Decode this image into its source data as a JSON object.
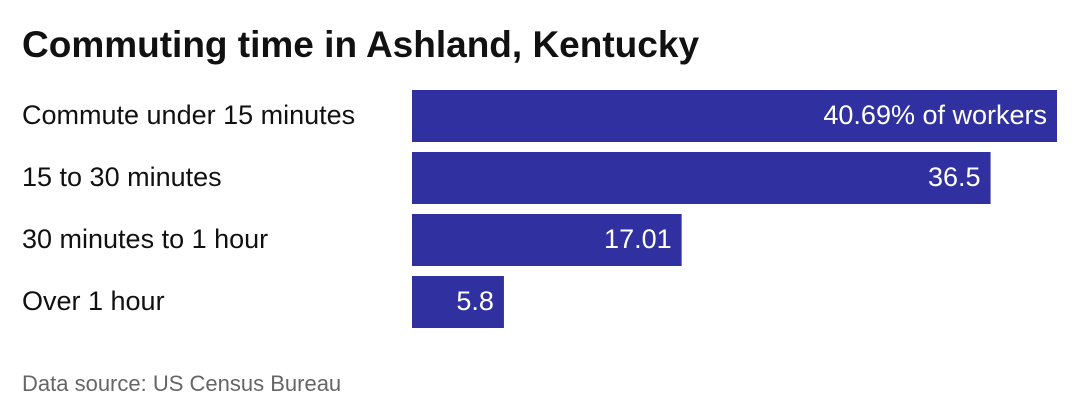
{
  "chart_data": {
    "type": "bar",
    "orientation": "horizontal",
    "title": "Commuting time in Ashland, Kentucky",
    "categories": [
      "Commute under 15 minutes",
      "15 to 30 minutes",
      "30 minutes to 1 hour",
      "Over 1 hour"
    ],
    "values": [
      40.69,
      36.5,
      17.01,
      5.8
    ],
    "value_labels": [
      "40.69% of workers",
      "36.5",
      "17.01",
      "5.8"
    ],
    "color": "#3030a0",
    "source": "Data source: US Census Bureau"
  }
}
